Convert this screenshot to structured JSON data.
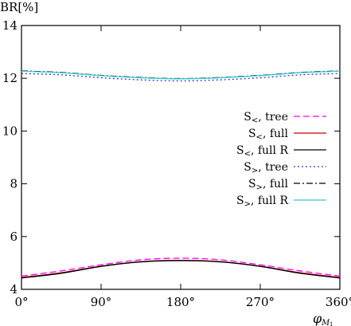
{
  "chart_data": {
    "type": "line",
    "ylabel": "BR[%]",
    "xlabel": "φ_{M_1}",
    "xlabel_main": "φ",
    "xlabel_sub": "M",
    "xlabel_subsub": "1",
    "xlim": [
      0,
      360
    ],
    "ylim": [
      4,
      14
    ],
    "x_ticks": [
      0,
      90,
      180,
      270,
      360
    ],
    "x_tick_labels": [
      "0°",
      "90°",
      "180°",
      "270°",
      "360°"
    ],
    "y_ticks": [
      4,
      6,
      8,
      10,
      12,
      14
    ],
    "y_tick_labels": [
      "4",
      "6",
      "8",
      "10",
      "12",
      "14"
    ],
    "grid": false,
    "legend_position": "right",
    "series": [
      {
        "name": "S<, tree",
        "legend_label": "S_<, tree",
        "color": "#ff00ff",
        "dash": "8,4",
        "x": [
          0,
          45,
          90,
          135,
          180,
          225,
          270,
          315,
          360
        ],
        "values": [
          4.5,
          4.7,
          4.93,
          5.12,
          5.18,
          5.12,
          4.93,
          4.7,
          4.5
        ]
      },
      {
        "name": "S<, full",
        "legend_label": "S_<, full",
        "color": "#cc0000",
        "dash": "",
        "x": [
          0,
          45,
          90,
          135,
          180,
          225,
          270,
          315,
          360
        ],
        "values": [
          4.45,
          4.63,
          4.88,
          5.05,
          5.1,
          5.05,
          4.88,
          4.63,
          4.45
        ]
      },
      {
        "name": "S<, full R",
        "legend_label": "S_<, full R",
        "color": "#000000",
        "dash": "",
        "x": [
          0,
          45,
          90,
          135,
          180,
          225,
          270,
          315,
          360
        ],
        "values": [
          4.43,
          4.61,
          4.87,
          5.04,
          5.09,
          5.04,
          4.87,
          4.61,
          4.43
        ]
      },
      {
        "name": "S>, tree",
        "legend_label": "S_>, tree",
        "color": "#3333cc",
        "dash": "2,3",
        "x": [
          0,
          45,
          90,
          135,
          180,
          225,
          270,
          315,
          360
        ],
        "values": [
          12.18,
          12.13,
          12.02,
          11.94,
          11.9,
          11.94,
          12.02,
          12.13,
          12.18
        ]
      },
      {
        "name": "S>, full",
        "legend_label": "S_>, full",
        "color": "#000000",
        "dash": "8,3,2,3",
        "x": [
          0,
          45,
          90,
          135,
          180,
          225,
          270,
          315,
          360
        ],
        "values": [
          12.28,
          12.22,
          12.11,
          12.03,
          11.99,
          12.03,
          12.11,
          12.22,
          12.28
        ]
      },
      {
        "name": "S>, full R",
        "legend_label": "S_>, full R",
        "color": "#33cccc",
        "dash": "",
        "x": [
          0,
          45,
          90,
          135,
          180,
          225,
          270,
          315,
          360
        ],
        "values": [
          12.27,
          12.21,
          12.1,
          12.02,
          11.98,
          12.02,
          12.1,
          12.21,
          12.27
        ]
      }
    ]
  }
}
